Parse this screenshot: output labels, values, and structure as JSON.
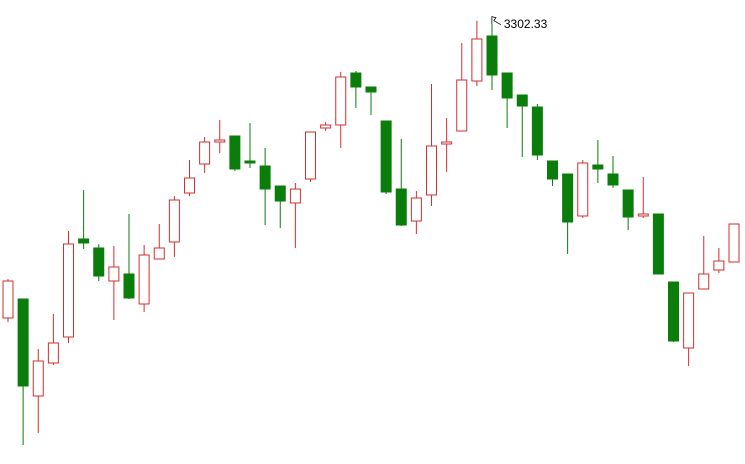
{
  "chart_data": {
    "type": "candlestick",
    "up_color": "#d22f2f",
    "down_color": "#0a7d0a",
    "ylim": [
      2863,
      3323
    ],
    "open": [
      3005,
      3024,
      2927,
      2960,
      2986,
      3084,
      3075,
      3042,
      3049,
      3019,
      3064,
      3081,
      3130,
      3159,
      3181,
      3187,
      3162,
      3157,
      3137,
      3120,
      3144,
      3195,
      3198,
      3250,
      3236,
      3202,
      3134,
      3102,
      3128,
      3179,
      3192,
      3242,
      3287,
      3250,
      3228,
      3216,
      3162,
      3149,
      3107,
      3158,
      3149,
      3133,
      3107,
      3109,
      3041,
      2975,
      3034,
      3053,
      3061
    ],
    "high": [
      3044,
      3024,
      2974,
      3009,
      3092,
      3133,
      3079,
      3077,
      3109,
      3078,
      3099,
      3127,
      3163,
      3186,
      3203,
      3187,
      3200,
      3175,
      3137,
      3140,
      3191,
      3201,
      3251,
      3252,
      3236,
      3202,
      3184,
      3132,
      3239,
      3205,
      3280,
      3302.33,
      3299,
      3250,
      3228,
      3219,
      3162,
      3149,
      3163,
      3183,
      3167,
      3133,
      3146,
      3109,
      3041,
      3030,
      3087,
      3075,
      3099
    ],
    "low": [
      3001,
      2878,
      2890,
      2958,
      2980,
      3074,
      3042,
      3003,
      3024,
      3011,
      3064,
      3066,
      3127,
      3150,
      3170,
      3152,
      3155,
      3098,
      3095,
      3075,
      3141,
      3192,
      3175,
      3215,
      3208,
      3129,
      3097,
      3089,
      3117,
      3151,
      3192,
      3237,
      3233,
      3195,
      3166,
      3163,
      3137,
      3069,
      3105,
      3140,
      3135,
      3093,
      3105,
      3049,
      2981,
      2957,
      3034,
      3050,
      3061
    ],
    "close": [
      3042,
      2937,
      2962,
      2980,
      3079,
      3080,
      3047,
      3056,
      3025,
      3068,
      3075,
      3123,
      3145,
      3181,
      3183,
      3154,
      3160,
      3134,
      3122,
      3134,
      3191,
      3198,
      3246,
      3236,
      3231,
      3131,
      3098,
      3125,
      3177,
      3181,
      3243,
      3284,
      3248,
      3225,
      3217,
      3168,
      3144,
      3101,
      3160,
      3154,
      3138,
      3106,
      3109,
      3049,
      2982,
      3030,
      3049,
      3062,
      3099
    ],
    "high_labels": [
      null,
      null,
      null,
      null,
      null,
      null,
      null,
      null,
      null,
      null,
      null,
      null,
      null,
      null,
      null,
      null,
      null,
      null,
      null,
      null,
      null,
      null,
      null,
      null,
      null,
      null,
      null,
      null,
      null,
      null,
      null,
      "3302.33",
      null,
      null,
      null,
      null,
      null,
      null,
      null,
      null,
      null,
      null,
      null,
      null,
      null,
      null,
      null,
      null,
      null
    ]
  }
}
